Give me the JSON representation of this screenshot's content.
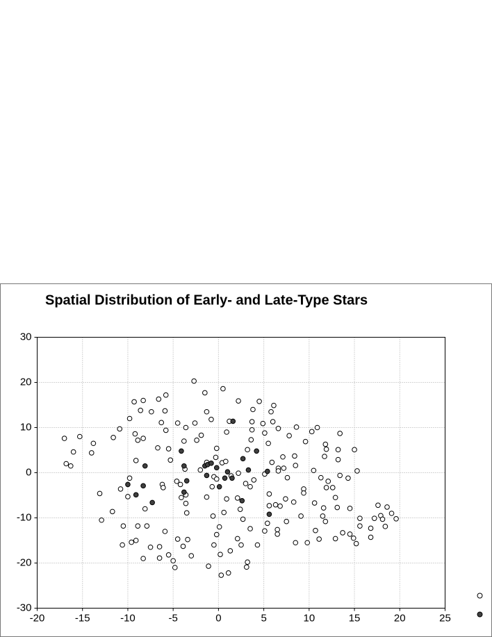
{
  "chart_data": {
    "type": "scatter",
    "title": "Spatial Distribution of Early- and Late-Type Stars",
    "xlim": [
      -20,
      25
    ],
    "ylim": [
      -30,
      30
    ],
    "xticks": [
      -20,
      -15,
      -10,
      -5,
      0,
      5,
      10,
      15,
      20,
      25
    ],
    "yticks": [
      -30,
      -20,
      -10,
      0,
      10,
      20,
      30
    ],
    "grid": true,
    "series": [
      {
        "color": "#ffffff",
        "x": [
          -17,
          -16.8,
          -16.3,
          -16,
          -15.3,
          -14,
          -13.8,
          -13.1,
          -12.9,
          -11.6,
          -11.7,
          -10.9,
          -10.8,
          -10.5,
          -10.6,
          -10,
          -9.8,
          -9.8,
          -9.6,
          -9.3,
          -9.2,
          -9.1,
          -9.1,
          -8.9,
          -8.9,
          -8.6,
          -8.3,
          -8.3,
          -8.3,
          -8.1,
          -7.9,
          -7.5,
          -7.4,
          -6.7,
          -6.6,
          -6.5,
          -6.5,
          -6.3,
          -6.2,
          -6.1,
          -5.9,
          -5.8,
          -5.8,
          -5.9,
          -5.5,
          -5.3,
          -5.5,
          -5,
          -4.8,
          -4.5,
          -4.5,
          -4.6,
          -4.2,
          -4.1,
          -3.9,
          -3.8,
          -3.7,
          -3.6,
          -3.6,
          -3.5,
          -3.6,
          -3.4,
          -3,
          -2.6,
          -2.7,
          -2.4,
          -2,
          -1.9,
          -1.5,
          -1.3,
          -1.3,
          -1.1,
          -1.3,
          -0.8,
          -0.7,
          -0.6,
          -0.5,
          -0.5,
          -0.3,
          -0.2,
          -0.2,
          -0.2,
          0.1,
          0.2,
          0.3,
          0.4,
          0.5,
          0.6,
          0.8,
          0.9,
          0.9,
          1.1,
          1.2,
          1.3,
          1.4,
          2.1,
          2.1,
          2.2,
          2.2,
          2.4,
          2.5,
          2.7,
          3,
          3.1,
          3.2,
          3.2,
          3.5,
          3.5,
          3.6,
          3.7,
          3.7,
          3.8,
          3.9,
          4.3,
          4.5,
          4.9,
          5.1,
          5.1,
          5.1,
          5.4,
          5.5,
          5.6,
          5.6,
          5.9,
          5.8,
          6,
          6.1,
          6.3,
          6.5,
          6.5,
          6.6,
          6.6,
          6.6,
          6.8,
          7.1,
          7.2,
          7.4,
          7.5,
          7.6,
          7.8,
          8.3,
          8.4,
          8.5,
          8.5,
          8.6,
          9.1,
          9.4,
          9.6,
          9.4,
          9.8,
          10.3,
          10.5,
          10.6,
          10.7,
          10.9,
          11.1,
          11.3,
          11.5,
          11.7,
          11.6,
          11.8,
          11.8,
          11.9,
          12.1,
          11.9,
          12.6,
          12.9,
          12.9,
          13.1,
          13.2,
          13.2,
          13.4,
          13.4,
          13.7,
          14.3,
          14.5,
          14.5,
          14.9,
          15,
          15.2,
          15.3,
          15.6,
          15.6,
          16.8,
          16.8,
          17.2,
          17.6,
          17.9,
          18.1,
          18.4,
          18.6,
          19.1,
          19.6
        ],
        "values": [
          7.6,
          2,
          1.5,
          4.6,
          8,
          4.4,
          6.5,
          -4.6,
          -10.5,
          7.8,
          -8.6,
          9.7,
          -3.6,
          -11.8,
          -16,
          -5.3,
          -1.2,
          12,
          -15.4,
          15.7,
          8.6,
          2.7,
          -15,
          7.2,
          -11.8,
          13.8,
          16,
          7.6,
          -19,
          -8,
          -11.8,
          -16.5,
          13.5,
          5.5,
          16.3,
          -18.9,
          -16.4,
          11.1,
          -2.6,
          -3.3,
          13.7,
          17.2,
          9.4,
          -13,
          5.3,
          2.8,
          -18.2,
          -19.5,
          -21,
          11,
          -14.7,
          -1.9,
          -2.6,
          -5.5,
          -16.3,
          7,
          0.8,
          -4.9,
          -6.8,
          -8.9,
          10,
          -14.8,
          -18.4,
          11,
          20.3,
          7.2,
          0.6,
          8.3,
          17.7,
          13.5,
          -5.4,
          -20.7,
          2.3,
          11.8,
          -3.1,
          -9.6,
          -16,
          -0.9,
          3.4,
          -1.4,
          5.4,
          -13.7,
          -12,
          -18.1,
          -22.7,
          2.2,
          18.6,
          -8.8,
          2.5,
          9,
          -5.8,
          -22.2,
          11.4,
          -17.3,
          -0.7,
          -5.6,
          -14.6,
          15.9,
          -0.1,
          -8.1,
          -16,
          -10.3,
          -2.4,
          -20.9,
          -19.8,
          5.1,
          -12.4,
          -3.1,
          7.3,
          11.3,
          9.5,
          14,
          -1.6,
          -16,
          15.8,
          10.9,
          -0.3,
          -12.9,
          8.8,
          -11.2,
          6.5,
          -7.3,
          -4.7,
          2.3,
          13.5,
          11.3,
          14.9,
          -7.1,
          -12.6,
          -13.6,
          9.8,
          1,
          0.4,
          -7.4,
          3.5,
          1,
          -5.8,
          -10.8,
          -1.1,
          8.2,
          -6.5,
          3.7,
          1.6,
          -15.5,
          10.1,
          -9.6,
          -3.6,
          6.9,
          -4.5,
          -15.5,
          9.1,
          0.5,
          -6.7,
          -12.8,
          10,
          -14.7,
          -1.1,
          -9.6,
          3.6,
          -7.8,
          -10.8,
          6.3,
          5.2,
          -1.9,
          -3.3,
          -3.3,
          -5.5,
          -14.6,
          -7.7,
          2.9,
          5.1,
          -0.6,
          8.7,
          -13.3,
          -1.2,
          -7.9,
          -13.6,
          -14.5,
          5.1,
          -15.7,
          0.4,
          -10.1,
          -11.8,
          -12.3,
          -14.3,
          -10.1,
          -7.2,
          -9.5,
          -10.3,
          -11.9,
          -7.6,
          -9,
          -10.2
        ]
      },
      {
        "color": "#404040",
        "x": [
          1.6,
          -4.1,
          4.2,
          -1.5,
          -1.2,
          -3.8,
          -0.2,
          2.7,
          1,
          1.5,
          0.7,
          -1.3,
          0.1,
          -3.5,
          -3.8,
          -8.1,
          -10,
          -8.3,
          -9.1,
          -7.3,
          3.3,
          2.6,
          5.4,
          5.6,
          -0.8
        ],
        "values": [
          11.4,
          4.8,
          4.8,
          1.5,
          1.8,
          1.5,
          1.1,
          3.1,
          0.2,
          -1.2,
          -1.2,
          -0.6,
          -3.1,
          -1.8,
          -4.3,
          1.5,
          -2.6,
          -2.9,
          -4.9,
          -6.6,
          0.6,
          -6.2,
          0.3,
          -9.2,
          2.1
        ]
      }
    ]
  }
}
